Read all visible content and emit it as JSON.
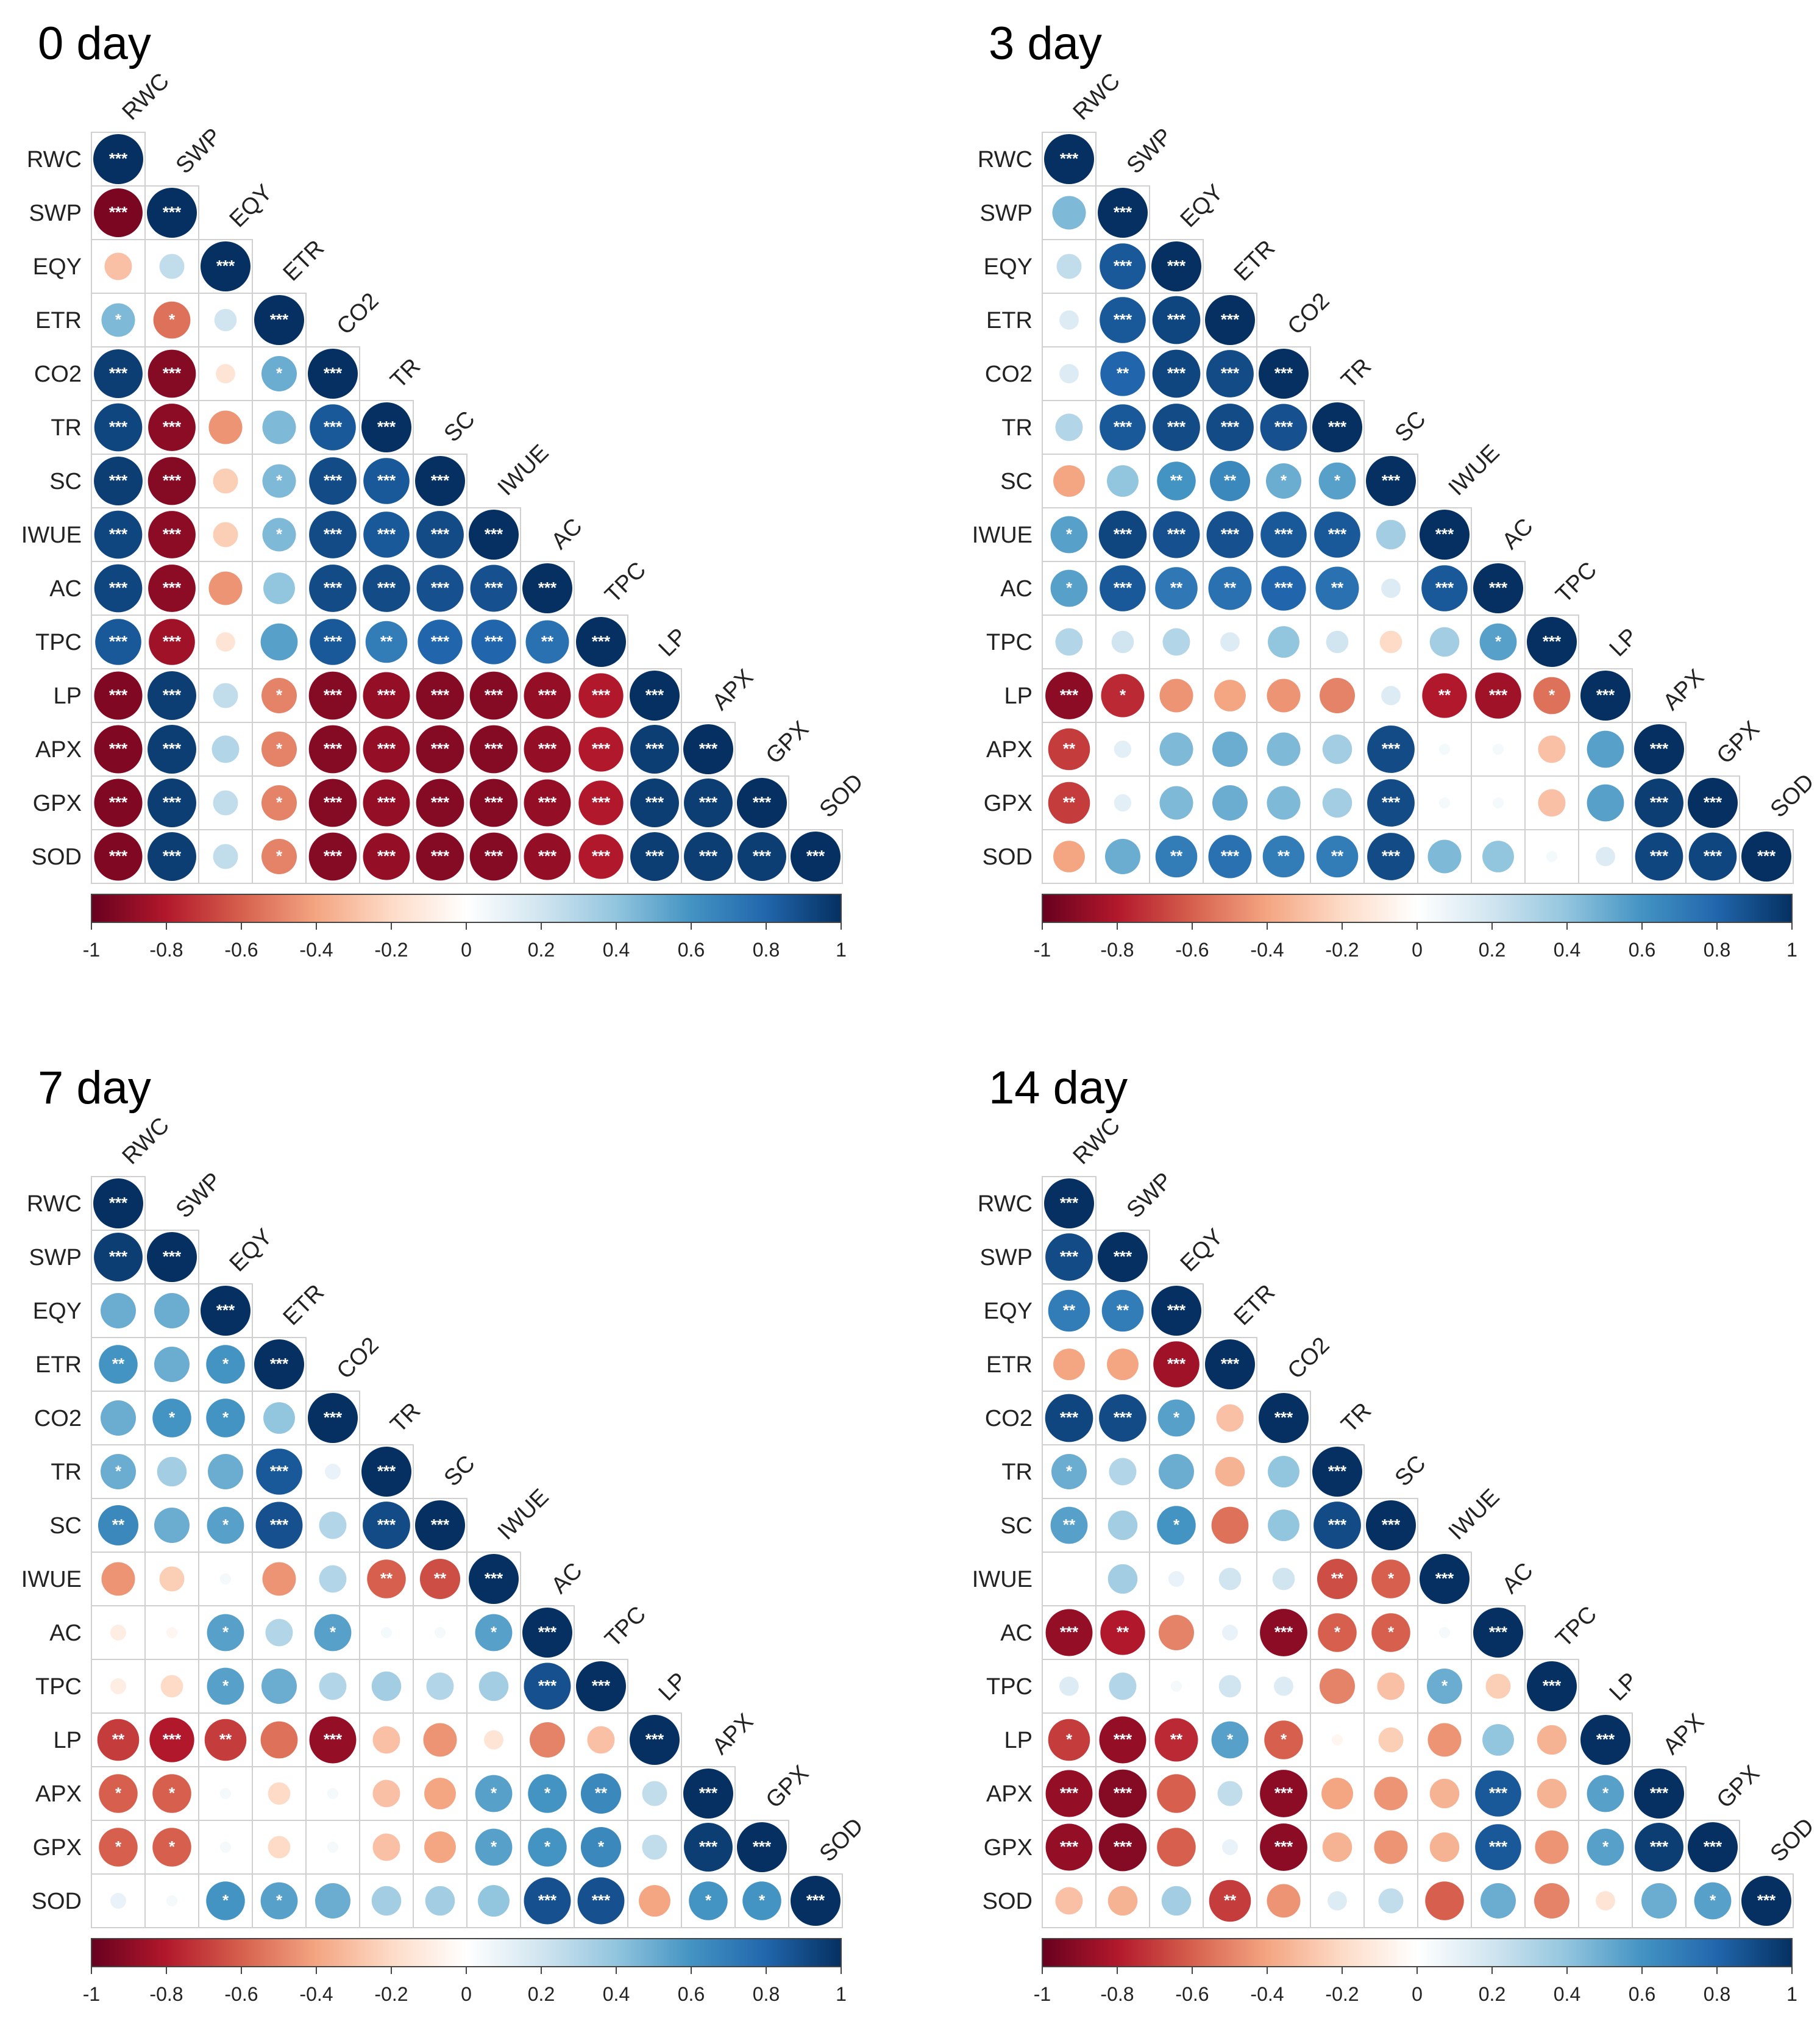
{
  "chart_data": [
    {
      "type": "heatmap",
      "title": "0 day",
      "variables": [
        "RWC",
        "SWP",
        "EQY",
        "ETR",
        "CO2",
        "TR",
        "SC",
        "IWUE",
        "AC",
        "TPC",
        "LP",
        "APX",
        "GPX",
        "SOD"
      ],
      "lower_triangle_r": [
        [
          1
        ],
        [
          -0.95,
          1
        ],
        [
          -0.3,
          0.25,
          1
        ],
        [
          0.45,
          -0.55,
          0.2,
          1
        ],
        [
          0.95,
          -0.92,
          -0.15,
          0.5,
          1
        ],
        [
          0.92,
          -0.9,
          -0.45,
          0.45,
          0.85,
          1
        ],
        [
          0.95,
          -0.92,
          -0.25,
          0.45,
          0.9,
          0.85,
          1
        ],
        [
          0.92,
          -0.9,
          -0.25,
          0.45,
          0.9,
          0.85,
          0.9,
          1
        ],
        [
          0.92,
          -0.9,
          -0.45,
          0.4,
          0.9,
          0.9,
          0.88,
          0.88,
          1
        ],
        [
          0.85,
          -0.85,
          -0.15,
          0.55,
          0.85,
          0.7,
          0.8,
          0.8,
          0.75,
          1
        ],
        [
          -0.93,
          0.95,
          0.25,
          -0.5,
          -0.92,
          -0.88,
          -0.92,
          -0.92,
          -0.88,
          -0.8,
          1
        ],
        [
          -0.93,
          0.95,
          0.3,
          -0.5,
          -0.92,
          -0.88,
          -0.92,
          -0.92,
          -0.88,
          -0.8,
          0.95,
          1
        ],
        [
          -0.93,
          0.95,
          0.25,
          -0.5,
          -0.92,
          -0.88,
          -0.92,
          -0.92,
          -0.88,
          -0.8,
          0.95,
          0.95,
          1
        ],
        [
          -0.93,
          0.95,
          0.25,
          -0.5,
          -0.92,
          -0.88,
          -0.92,
          -0.92,
          -0.88,
          -0.8,
          0.95,
          0.95,
          0.95,
          1
        ]
      ],
      "significance": [
        [
          "***"
        ],
        [
          "***",
          "***"
        ],
        [
          "",
          "",
          "***"
        ],
        [
          "*",
          "*",
          "",
          "***"
        ],
        [
          "***",
          "***",
          "",
          "*",
          "***"
        ],
        [
          "***",
          "***",
          "",
          "",
          "***",
          "***"
        ],
        [
          "***",
          "***",
          "",
          "*",
          "***",
          "***",
          "***"
        ],
        [
          "***",
          "***",
          "",
          "*",
          "***",
          "***",
          "***",
          "***"
        ],
        [
          "***",
          "***",
          "",
          "",
          "***",
          "***",
          "***",
          "***",
          "***"
        ],
        [
          "***",
          "***",
          "",
          "",
          "***",
          "**",
          "***",
          "***",
          "**",
          "***"
        ],
        [
          "***",
          "***",
          "",
          "*",
          "***",
          "***",
          "***",
          "***",
          "***",
          "***",
          "***"
        ],
        [
          "***",
          "***",
          "",
          "*",
          "***",
          "***",
          "***",
          "***",
          "***",
          "***",
          "***",
          "***"
        ],
        [
          "***",
          "***",
          "",
          "*",
          "***",
          "***",
          "***",
          "***",
          "***",
          "***",
          "***",
          "***",
          "***"
        ],
        [
          "***",
          "***",
          "",
          "*",
          "***",
          "***",
          "***",
          "***",
          "***",
          "***",
          "***",
          "***",
          "***",
          "***"
        ]
      ],
      "colorbar_ticks": [
        "-1",
        "-0.8",
        "-0.6",
        "-0.4",
        "-0.2",
        "0",
        "0.2",
        "0.4",
        "0.6",
        "0.8",
        "1"
      ],
      "color_range": [
        -1,
        1
      ]
    },
    {
      "type": "heatmap",
      "title": "3 day",
      "variables": [
        "RWC",
        "SWP",
        "EQY",
        "ETR",
        "CO2",
        "TR",
        "SC",
        "IWUE",
        "AC",
        "TPC",
        "LP",
        "APX",
        "GPX",
        "SOD"
      ],
      "lower_triangle_r": [
        [
          1
        ],
        [
          0.45,
          1
        ],
        [
          0.25,
          0.85,
          1
        ],
        [
          0.15,
          0.85,
          0.92,
          1
        ],
        [
          0.15,
          0.8,
          0.92,
          0.9,
          1
        ],
        [
          0.3,
          0.85,
          0.9,
          0.9,
          0.88,
          1
        ],
        [
          -0.4,
          0.4,
          0.6,
          0.65,
          0.5,
          0.55,
          1
        ],
        [
          0.55,
          0.92,
          0.88,
          0.88,
          0.85,
          0.85,
          0.35,
          1
        ],
        [
          0.55,
          0.85,
          0.72,
          0.75,
          0.8,
          0.75,
          0.15,
          0.85,
          1
        ],
        [
          0.3,
          0.2,
          0.3,
          0.15,
          0.4,
          0.2,
          -0.2,
          0.35,
          0.55,
          1
        ],
        [
          -0.9,
          -0.75,
          -0.45,
          -0.4,
          -0.45,
          -0.5,
          0.15,
          -0.8,
          -0.85,
          -0.55,
          1
        ],
        [
          -0.7,
          0.12,
          0.45,
          0.5,
          0.45,
          0.35,
          0.9,
          0.05,
          0.05,
          -0.3,
          0.55,
          1
        ],
        [
          -0.7,
          0.12,
          0.45,
          0.5,
          0.45,
          0.35,
          0.9,
          0.05,
          0.05,
          -0.3,
          0.55,
          0.95,
          1
        ],
        [
          -0.4,
          0.5,
          0.7,
          0.75,
          0.7,
          0.7,
          0.9,
          0.45,
          0.4,
          0.05,
          0.15,
          0.92,
          0.92,
          1
        ]
      ],
      "significance": [
        [
          "***"
        ],
        [
          "",
          "***"
        ],
        [
          "",
          "***",
          "***"
        ],
        [
          "",
          "***",
          "***",
          "***"
        ],
        [
          "",
          "**",
          "***",
          "***",
          "***"
        ],
        [
          "",
          "***",
          "***",
          "***",
          "***",
          "***"
        ],
        [
          "",
          "",
          "**",
          "**",
          "*",
          "*",
          "***"
        ],
        [
          "*",
          "***",
          "***",
          "***",
          "***",
          "***",
          "",
          "***"
        ],
        [
          "*",
          "***",
          "**",
          "**",
          "***",
          "**",
          "",
          "***",
          "***"
        ],
        [
          "",
          "",
          "",
          "",
          "",
          "",
          "",
          "",
          "*",
          "***"
        ],
        [
          "***",
          "*",
          "",
          "",
          "",
          "",
          "",
          "**",
          "***",
          "*",
          "***"
        ],
        [
          "**",
          "",
          "",
          "",
          "",
          "",
          "***",
          "",
          "",
          "",
          "",
          "***"
        ],
        [
          "**",
          "",
          "",
          "",
          "",
          "",
          "***",
          "",
          "",
          "",
          "",
          "***",
          "***"
        ],
        [
          "",
          "",
          "**",
          "***",
          "**",
          "**",
          "***",
          "",
          "",
          "",
          "",
          "***",
          "***",
          "***"
        ]
      ],
      "colorbar_ticks": [
        "-1",
        "-0.8",
        "-0.6",
        "-0.4",
        "-0.2",
        "0",
        "0.2",
        "0.4",
        "0.6",
        "0.8",
        "1"
      ],
      "color_range": [
        -1,
        1
      ]
    },
    {
      "type": "heatmap",
      "title": "7 day",
      "variables": [
        "RWC",
        "SWP",
        "EQY",
        "ETR",
        "CO2",
        "TR",
        "SC",
        "IWUE",
        "AC",
        "TPC",
        "LP",
        "APX",
        "GPX",
        "SOD"
      ],
      "lower_triangle_r": [
        [
          1
        ],
        [
          0.95,
          1
        ],
        [
          0.5,
          0.5,
          1
        ],
        [
          0.6,
          0.5,
          0.6,
          1
        ],
        [
          0.5,
          0.6,
          0.6,
          0.4,
          1
        ],
        [
          0.5,
          0.35,
          0.5,
          0.85,
          0.1,
          1
        ],
        [
          0.65,
          0.5,
          0.55,
          0.88,
          0.3,
          0.9,
          1
        ],
        [
          -0.45,
          -0.25,
          0.05,
          -0.45,
          0.3,
          -0.6,
          -0.65,
          1
        ],
        [
          -0.1,
          -0.05,
          0.55,
          0.3,
          0.55,
          0.05,
          0.05,
          0.55,
          1
        ],
        [
          -0.1,
          -0.2,
          0.55,
          0.5,
          0.3,
          0.35,
          0.3,
          0.35,
          0.88,
          1
        ],
        [
          -0.7,
          -0.8,
          -0.7,
          -0.55,
          -0.88,
          -0.3,
          -0.45,
          -0.15,
          -0.5,
          -0.3,
          1
        ],
        [
          -0.6,
          -0.6,
          0.05,
          -0.2,
          0.05,
          -0.3,
          -0.4,
          0.55,
          0.6,
          0.65,
          0.25,
          1
        ],
        [
          -0.6,
          -0.6,
          0.05,
          -0.2,
          0.05,
          -0.3,
          -0.4,
          0.55,
          0.6,
          0.65,
          0.25,
          0.95,
          1
        ],
        [
          0.1,
          0.05,
          0.6,
          0.55,
          0.5,
          0.35,
          0.35,
          0.4,
          0.88,
          0.88,
          -0.4,
          0.6,
          0.6,
          1
        ]
      ],
      "significance": [
        [
          "***"
        ],
        [
          "***",
          "***"
        ],
        [
          "",
          "",
          "***"
        ],
        [
          "**",
          "",
          "*",
          "***"
        ],
        [
          "",
          "*",
          "*",
          "",
          "***"
        ],
        [
          "*",
          "",
          "",
          "***",
          "",
          "***"
        ],
        [
          "**",
          "",
          "*",
          "***",
          "",
          "***",
          "***"
        ],
        [
          "",
          "",
          "",
          "",
          "",
          "**",
          "**",
          "***"
        ],
        [
          "",
          "",
          "*",
          "",
          "*",
          "",
          "",
          "*",
          "***"
        ],
        [
          "",
          "",
          "*",
          "",
          "",
          "",
          "",
          "",
          "***",
          "***"
        ],
        [
          "**",
          "***",
          "**",
          "",
          "***",
          "",
          "",
          "",
          "",
          "",
          "***"
        ],
        [
          "*",
          "*",
          "",
          "",
          "",
          "",
          "",
          "*",
          "*",
          "**",
          "",
          "***"
        ],
        [
          "*",
          "*",
          "",
          "",
          "",
          "",
          "",
          "*",
          "*",
          "*",
          "",
          "***",
          "***"
        ],
        [
          "",
          "",
          "*",
          "*",
          "",
          "",
          "",
          "",
          "***",
          "***",
          "",
          "*",
          "*",
          "***"
        ]
      ],
      "colorbar_ticks": [
        "-1",
        "-0.8",
        "-0.6",
        "-0.4",
        "-0.2",
        "0",
        "0.2",
        "0.4",
        "0.6",
        "0.8",
        "1"
      ],
      "color_range": [
        -1,
        1
      ]
    },
    {
      "type": "heatmap",
      "title": "14 day",
      "variables": [
        "RWC",
        "SWP",
        "EQY",
        "ETR",
        "CO2",
        "TR",
        "SC",
        "IWUE",
        "AC",
        "TPC",
        "LP",
        "APX",
        "GPX",
        "SOD"
      ],
      "lower_triangle_r": [
        [
          1
        ],
        [
          0.9,
          1
        ],
        [
          0.7,
          0.7,
          1
        ],
        [
          -0.4,
          -0.4,
          -0.85,
          1
        ],
        [
          0.92,
          0.9,
          0.55,
          -0.3,
          1
        ],
        [
          0.5,
          0.3,
          0.5,
          -0.35,
          0.4,
          1
        ],
        [
          0.55,
          0.35,
          0.6,
          -0.55,
          0.4,
          0.9,
          1
        ],
        [
          0.0,
          0.35,
          0.1,
          0.2,
          0.2,
          -0.65,
          -0.6,
          1
        ],
        [
          -0.88,
          -0.8,
          -0.5,
          0.1,
          -0.9,
          -0.6,
          -0.6,
          0.05,
          1
        ],
        [
          0.15,
          0.3,
          0.05,
          0.2,
          0.15,
          -0.5,
          -0.3,
          0.5,
          -0.25,
          1
        ],
        [
          -0.7,
          -0.88,
          -0.75,
          0.55,
          -0.6,
          -0.05,
          -0.25,
          -0.45,
          0.4,
          -0.35,
          1
        ],
        [
          -0.88,
          -0.92,
          -0.6,
          0.25,
          -0.9,
          -0.4,
          -0.45,
          -0.35,
          0.85,
          -0.35,
          0.55,
          1
        ],
        [
          -0.88,
          -0.92,
          -0.6,
          0.1,
          -0.9,
          -0.35,
          -0.45,
          -0.35,
          0.85,
          -0.45,
          0.55,
          0.95,
          1
        ],
        [
          -0.3,
          -0.35,
          0.35,
          -0.7,
          -0.45,
          0.15,
          0.25,
          -0.6,
          0.5,
          -0.5,
          -0.15,
          0.5,
          0.55,
          1
        ]
      ],
      "significance": [
        [
          "***"
        ],
        [
          "***",
          "***"
        ],
        [
          "**",
          "**",
          "***"
        ],
        [
          "",
          "",
          "***",
          "***"
        ],
        [
          "***",
          "***",
          "*",
          "",
          "***"
        ],
        [
          "*",
          "",
          "",
          "",
          "",
          "***"
        ],
        [
          "**",
          "",
          "*",
          "",
          "",
          "***",
          "***"
        ],
        [
          "",
          "",
          "",
          "",
          "",
          "**",
          "*",
          "***"
        ],
        [
          "***",
          "**",
          "",
          "",
          "***",
          "*",
          "*",
          "",
          "***"
        ],
        [
          "",
          "",
          "",
          "",
          "",
          "",
          "",
          "*",
          "",
          "***"
        ],
        [
          "*",
          "***",
          "**",
          "*",
          "*",
          "",
          "",
          "",
          "",
          "",
          "***"
        ],
        [
          "***",
          "***",
          "",
          "",
          "***",
          "",
          "",
          "",
          "***",
          "",
          "*",
          "***"
        ],
        [
          "***",
          "***",
          "",
          "",
          "***",
          "",
          "",
          "",
          "***",
          "",
          "*",
          "***",
          "***"
        ],
        [
          "",
          "",
          "",
          "**",
          "",
          "",
          "",
          "",
          "",
          "",
          "",
          "",
          "*",
          "***"
        ]
      ],
      "colorbar_ticks": [
        "-1",
        "-0.8",
        "-0.6",
        "-0.4",
        "-0.2",
        "0",
        "0.2",
        "0.4",
        "0.6",
        "0.8",
        "1"
      ],
      "color_range": [
        -1,
        1
      ]
    }
  ]
}
